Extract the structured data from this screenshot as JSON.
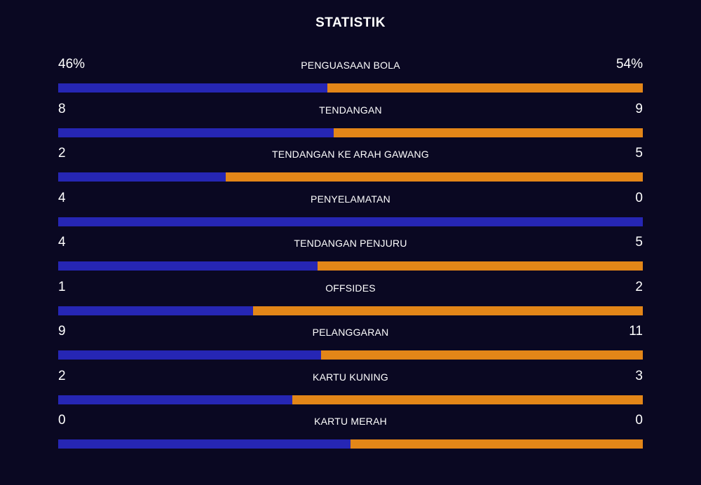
{
  "title": "STATISTIK",
  "colors": {
    "background": "#0a0822",
    "home_bar": "#2626b4",
    "away_bar": "#e38618",
    "text": "#ffffff"
  },
  "stats": [
    {
      "label": "PENGUASAAN BOLA",
      "home": "46%",
      "away": "54%",
      "home_share": 0.46
    },
    {
      "label": "TENDANGAN",
      "home": "8",
      "away": "9",
      "home_share": 0.471
    },
    {
      "label": "TENDANGAN KE ARAH GAWANG",
      "home": "2",
      "away": "5",
      "home_share": 0.286
    },
    {
      "label": "PENYELAMATAN",
      "home": "4",
      "away": "0",
      "home_share": 1.0
    },
    {
      "label": "TENDANGAN PENJURU",
      "home": "4",
      "away": "5",
      "home_share": 0.444
    },
    {
      "label": "OFFSIDES",
      "home": "1",
      "away": "2",
      "home_share": 0.333
    },
    {
      "label": "PELANGGARAN",
      "home": "9",
      "away": "11",
      "home_share": 0.45
    },
    {
      "label": "KARTU KUNING",
      "home": "2",
      "away": "3",
      "home_share": 0.4
    },
    {
      "label": "KARTU MERAH",
      "home": "0",
      "away": "0",
      "home_share": 0.5
    }
  ]
}
